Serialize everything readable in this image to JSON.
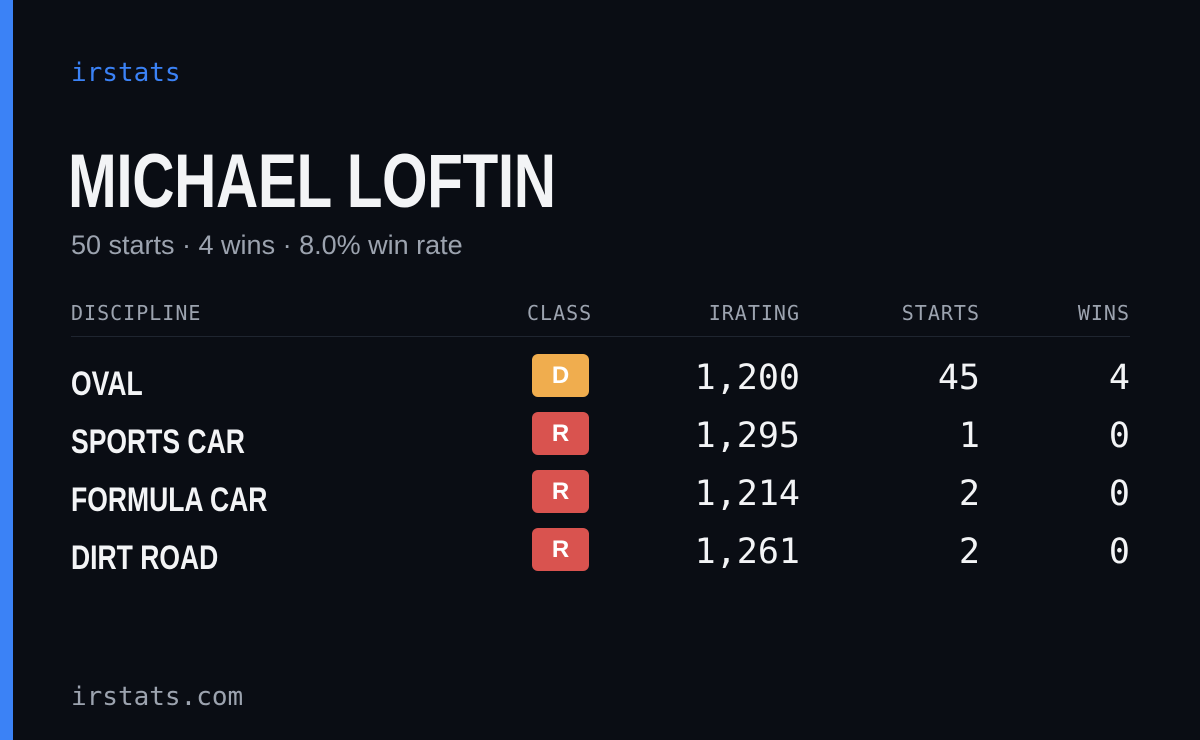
{
  "brand": "irstats",
  "driver": {
    "name": "MICHAEL LOFTIN",
    "summary": "50 starts · 4 wins · 8.0% win rate"
  },
  "table": {
    "headers": {
      "discipline": "DISCIPLINE",
      "class": "CLASS",
      "irating": "IRATING",
      "starts": "STARTS",
      "wins": "WINS"
    },
    "rows": [
      {
        "discipline": "OVAL",
        "class": "D",
        "class_color": "#f0ad4e",
        "irating": "1,200",
        "starts": "45",
        "wins": "4"
      },
      {
        "discipline": "SPORTS CAR",
        "class": "R",
        "class_color": "#d9534f",
        "irating": "1,295",
        "starts": "1",
        "wins": "0"
      },
      {
        "discipline": "FORMULA CAR",
        "class": "R",
        "class_color": "#d9534f",
        "irating": "1,214",
        "starts": "2",
        "wins": "0"
      },
      {
        "discipline": "DIRT ROAD",
        "class": "R",
        "class_color": "#d9534f",
        "irating": "1,261",
        "starts": "2",
        "wins": "0"
      }
    ]
  },
  "footer": "irstats.com",
  "colors": {
    "accent": "#3b82f6",
    "background": "#0a0d14",
    "muted_text": "#9ca3af"
  }
}
